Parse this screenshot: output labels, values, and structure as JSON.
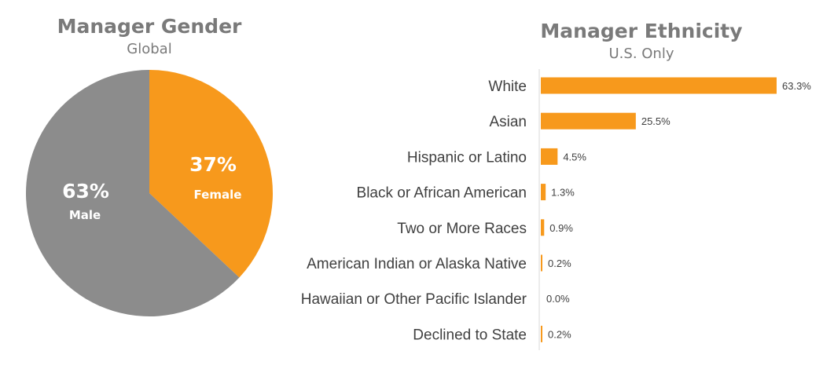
{
  "colors": {
    "accent": "#f7991c",
    "male": "#8c8c8c",
    "title": "#7a7a7a",
    "text": "#404040"
  },
  "chart_data": [
    {
      "type": "pie",
      "title": "Manager Gender",
      "subtitle": "Global",
      "slices": [
        {
          "label": "Female",
          "value": 37,
          "display": "37%",
          "color": "#f7991c"
        },
        {
          "label": "Male",
          "value": 63,
          "display": "63%",
          "color": "#8c8c8c"
        }
      ]
    },
    {
      "type": "bar",
      "orientation": "horizontal",
      "title": "Manager Ethnicity",
      "subtitle": "U.S. Only",
      "categories": [
        "White",
        "Asian",
        "Hispanic or Latino",
        "Black or African American",
        "Two or More Races",
        "American Indian or Alaska Native",
        "Hawaiian or Other Pacific Islander",
        "Declined to State"
      ],
      "values": [
        63.3,
        25.5,
        4.5,
        1.3,
        0.9,
        0.2,
        0.0,
        0.2
      ],
      "value_labels": [
        "63.3%",
        "25.5%",
        "4.5%",
        "1.3%",
        "0.9%",
        "0.2%",
        "0.0%",
        "0.2%"
      ],
      "xlim": [
        0,
        63.3
      ],
      "grid": false,
      "color": "#f7991c"
    }
  ]
}
